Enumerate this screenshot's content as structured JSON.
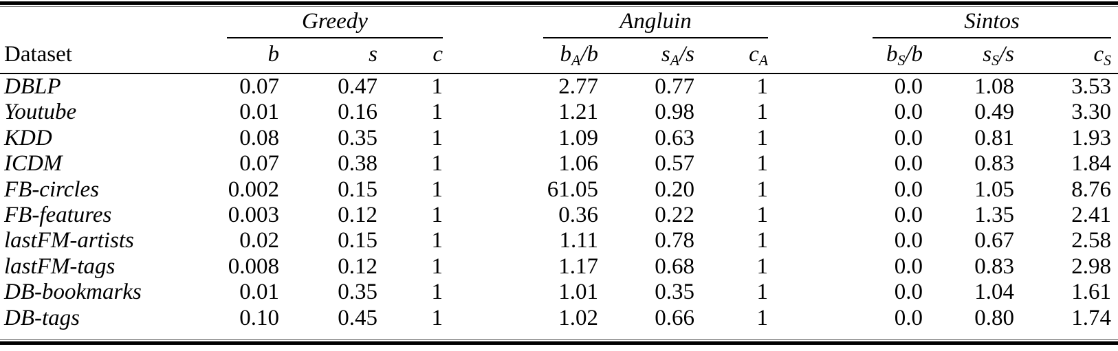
{
  "table": {
    "dataset_header": "Dataset",
    "groups": [
      {
        "label": "Greedy"
      },
      {
        "label": "Angluin"
      },
      {
        "label": "Sintos"
      }
    ],
    "headers": {
      "greedy": [
        {
          "base": "b",
          "sub": "",
          "rest": ""
        },
        {
          "base": "s",
          "sub": "",
          "rest": ""
        },
        {
          "base": "c",
          "sub": "",
          "rest": ""
        }
      ],
      "angluin": [
        {
          "base": "b",
          "sub": "A",
          "rest": "/b"
        },
        {
          "base": "s",
          "sub": "A",
          "rest": "/s"
        },
        {
          "base": "c",
          "sub": "A",
          "rest": ""
        }
      ],
      "sintos": [
        {
          "base": "b",
          "sub": "S",
          "rest": "/b"
        },
        {
          "base": "s",
          "sub": "S",
          "rest": "/s"
        },
        {
          "base": "c",
          "sub": "S",
          "rest": ""
        }
      ]
    },
    "rows": [
      {
        "dataset": "DBLP",
        "greedy": [
          "0.07",
          "0.47",
          "1"
        ],
        "angluin": [
          "2.77",
          "0.77",
          "1"
        ],
        "sintos": [
          "0.0",
          "1.08",
          "3.53"
        ]
      },
      {
        "dataset": "Youtube",
        "greedy": [
          "0.01",
          "0.16",
          "1"
        ],
        "angluin": [
          "1.21",
          "0.98",
          "1"
        ],
        "sintos": [
          "0.0",
          "0.49",
          "3.30"
        ]
      },
      {
        "dataset": "KDD",
        "greedy": [
          "0.08",
          "0.35",
          "1"
        ],
        "angluin": [
          "1.09",
          "0.63",
          "1"
        ],
        "sintos": [
          "0.0",
          "0.81",
          "1.93"
        ]
      },
      {
        "dataset": "ICDM",
        "greedy": [
          "0.07",
          "0.38",
          "1"
        ],
        "angluin": [
          "1.06",
          "0.57",
          "1"
        ],
        "sintos": [
          "0.0",
          "0.83",
          "1.84"
        ]
      },
      {
        "dataset": "FB-circles",
        "greedy": [
          "0.002",
          "0.15",
          "1"
        ],
        "angluin": [
          "61.05",
          "0.20",
          "1"
        ],
        "sintos": [
          "0.0",
          "1.05",
          "8.76"
        ]
      },
      {
        "dataset": "FB-features",
        "greedy": [
          "0.003",
          "0.12",
          "1"
        ],
        "angluin": [
          "0.36",
          "0.22",
          "1"
        ],
        "sintos": [
          "0.0",
          "1.35",
          "2.41"
        ]
      },
      {
        "dataset": "lastFM-artists",
        "greedy": [
          "0.02",
          "0.15",
          "1"
        ],
        "angluin": [
          "1.11",
          "0.78",
          "1"
        ],
        "sintos": [
          "0.0",
          "0.67",
          "2.58"
        ]
      },
      {
        "dataset": "lastFM-tags",
        "greedy": [
          "0.008",
          "0.12",
          "1"
        ],
        "angluin": [
          "1.17",
          "0.68",
          "1"
        ],
        "sintos": [
          "0.0",
          "0.83",
          "2.98"
        ]
      },
      {
        "dataset": "DB-bookmarks",
        "greedy": [
          "0.01",
          "0.35",
          "1"
        ],
        "angluin": [
          "1.01",
          "0.35",
          "1"
        ],
        "sintos": [
          "0.0",
          "1.04",
          "1.61"
        ]
      },
      {
        "dataset": "DB-tags",
        "greedy": [
          "0.10",
          "0.45",
          "1"
        ],
        "angluin": [
          "1.02",
          "0.66",
          "1"
        ],
        "sintos": [
          "0.0",
          "0.80",
          "1.74"
        ]
      }
    ]
  },
  "chart_data": {
    "type": "table",
    "title": "",
    "column_groups": [
      "Greedy",
      "Angluin",
      "Sintos"
    ],
    "columns": [
      "Dataset",
      "b",
      "s",
      "c",
      "b_A/b",
      "s_A/s",
      "c_A",
      "b_S/b",
      "s_S/s",
      "c_S"
    ],
    "rows": [
      [
        "DBLP",
        0.07,
        0.47,
        1,
        2.77,
        0.77,
        1,
        0.0,
        1.08,
        3.53
      ],
      [
        "Youtube",
        0.01,
        0.16,
        1,
        1.21,
        0.98,
        1,
        0.0,
        0.49,
        3.3
      ],
      [
        "KDD",
        0.08,
        0.35,
        1,
        1.09,
        0.63,
        1,
        0.0,
        0.81,
        1.93
      ],
      [
        "ICDM",
        0.07,
        0.38,
        1,
        1.06,
        0.57,
        1,
        0.0,
        0.83,
        1.84
      ],
      [
        "FB-circles",
        0.002,
        0.15,
        1,
        61.05,
        0.2,
        1,
        0.0,
        1.05,
        8.76
      ],
      [
        "FB-features",
        0.003,
        0.12,
        1,
        0.36,
        0.22,
        1,
        0.0,
        1.35,
        2.41
      ],
      [
        "lastFM-artists",
        0.02,
        0.15,
        1,
        1.11,
        0.78,
        1,
        0.0,
        0.67,
        2.58
      ],
      [
        "lastFM-tags",
        0.008,
        0.12,
        1,
        1.17,
        0.68,
        1,
        0.0,
        0.83,
        2.98
      ],
      [
        "DB-bookmarks",
        0.01,
        0.35,
        1,
        1.01,
        0.35,
        1,
        0.0,
        1.04,
        1.61
      ],
      [
        "DB-tags",
        0.1,
        0.45,
        1,
        1.02,
        0.66,
        1,
        0.0,
        0.8,
        1.74
      ]
    ]
  }
}
